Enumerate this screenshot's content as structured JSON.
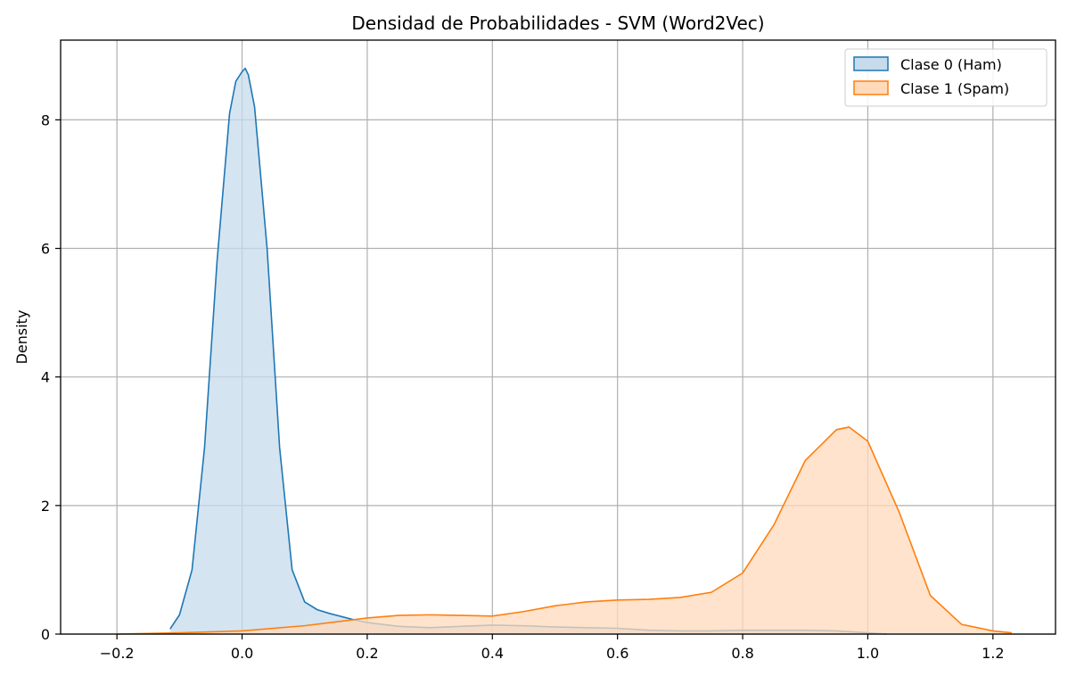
{
  "chart_data": {
    "type": "area",
    "title": "Densidad de Probabilidades - SVM (Word2Vec)",
    "xlabel": "",
    "ylabel": "Density",
    "xlim": [
      -0.29,
      1.3
    ],
    "ylim": [
      0,
      9.24
    ],
    "xticks": [
      -0.2,
      0.0,
      0.2,
      0.4,
      0.6,
      0.8,
      1.0,
      1.2
    ],
    "xtick_labels": [
      "−0.2",
      "0.0",
      "0.2",
      "0.4",
      "0.6",
      "0.8",
      "1.0",
      "1.2"
    ],
    "yticks": [
      0,
      2,
      4,
      6,
      8
    ],
    "ytick_labels": [
      "0",
      "2",
      "4",
      "6",
      "8"
    ],
    "grid": true,
    "legend_position": "top-right",
    "series": [
      {
        "name": "Clase 0 (Ham)",
        "color": "#1f77b4",
        "fill": "#c6dbec",
        "x": [
          -0.115,
          -0.1,
          -0.08,
          -0.06,
          -0.04,
          -0.02,
          -0.01,
          0.0,
          0.005,
          0.01,
          0.02,
          0.04,
          0.06,
          0.08,
          0.1,
          0.12,
          0.14,
          0.16,
          0.18,
          0.2,
          0.25,
          0.3,
          0.35,
          0.4,
          0.45,
          0.5,
          0.55,
          0.6,
          0.65,
          0.7,
          0.75,
          0.8,
          0.85,
          0.9,
          0.95,
          1.0,
          1.03
        ],
        "y": [
          0.08,
          0.3,
          1.0,
          2.9,
          5.8,
          8.1,
          8.6,
          8.75,
          8.8,
          8.7,
          8.2,
          6.0,
          2.9,
          1.0,
          0.5,
          0.38,
          0.32,
          0.27,
          0.22,
          0.18,
          0.12,
          0.1,
          0.12,
          0.14,
          0.13,
          0.11,
          0.1,
          0.09,
          0.06,
          0.05,
          0.05,
          0.06,
          0.06,
          0.06,
          0.05,
          0.02,
          0.0
        ]
      },
      {
        "name": "Clase 1 (Spam)",
        "color": "#ff7f0e",
        "fill": "#ffdabb",
        "x": [
          -0.2,
          -0.1,
          0.0,
          0.1,
          0.2,
          0.25,
          0.3,
          0.35,
          0.4,
          0.45,
          0.5,
          0.55,
          0.6,
          0.65,
          0.7,
          0.75,
          0.8,
          0.85,
          0.9,
          0.95,
          0.97,
          1.0,
          1.05,
          1.1,
          1.15,
          1.2,
          1.23
        ],
        "y": [
          0.0,
          0.02,
          0.05,
          0.13,
          0.25,
          0.29,
          0.3,
          0.29,
          0.28,
          0.35,
          0.44,
          0.5,
          0.53,
          0.54,
          0.57,
          0.65,
          0.95,
          1.7,
          2.7,
          3.18,
          3.22,
          3.0,
          1.9,
          0.6,
          0.15,
          0.05,
          0.02
        ]
      }
    ]
  }
}
